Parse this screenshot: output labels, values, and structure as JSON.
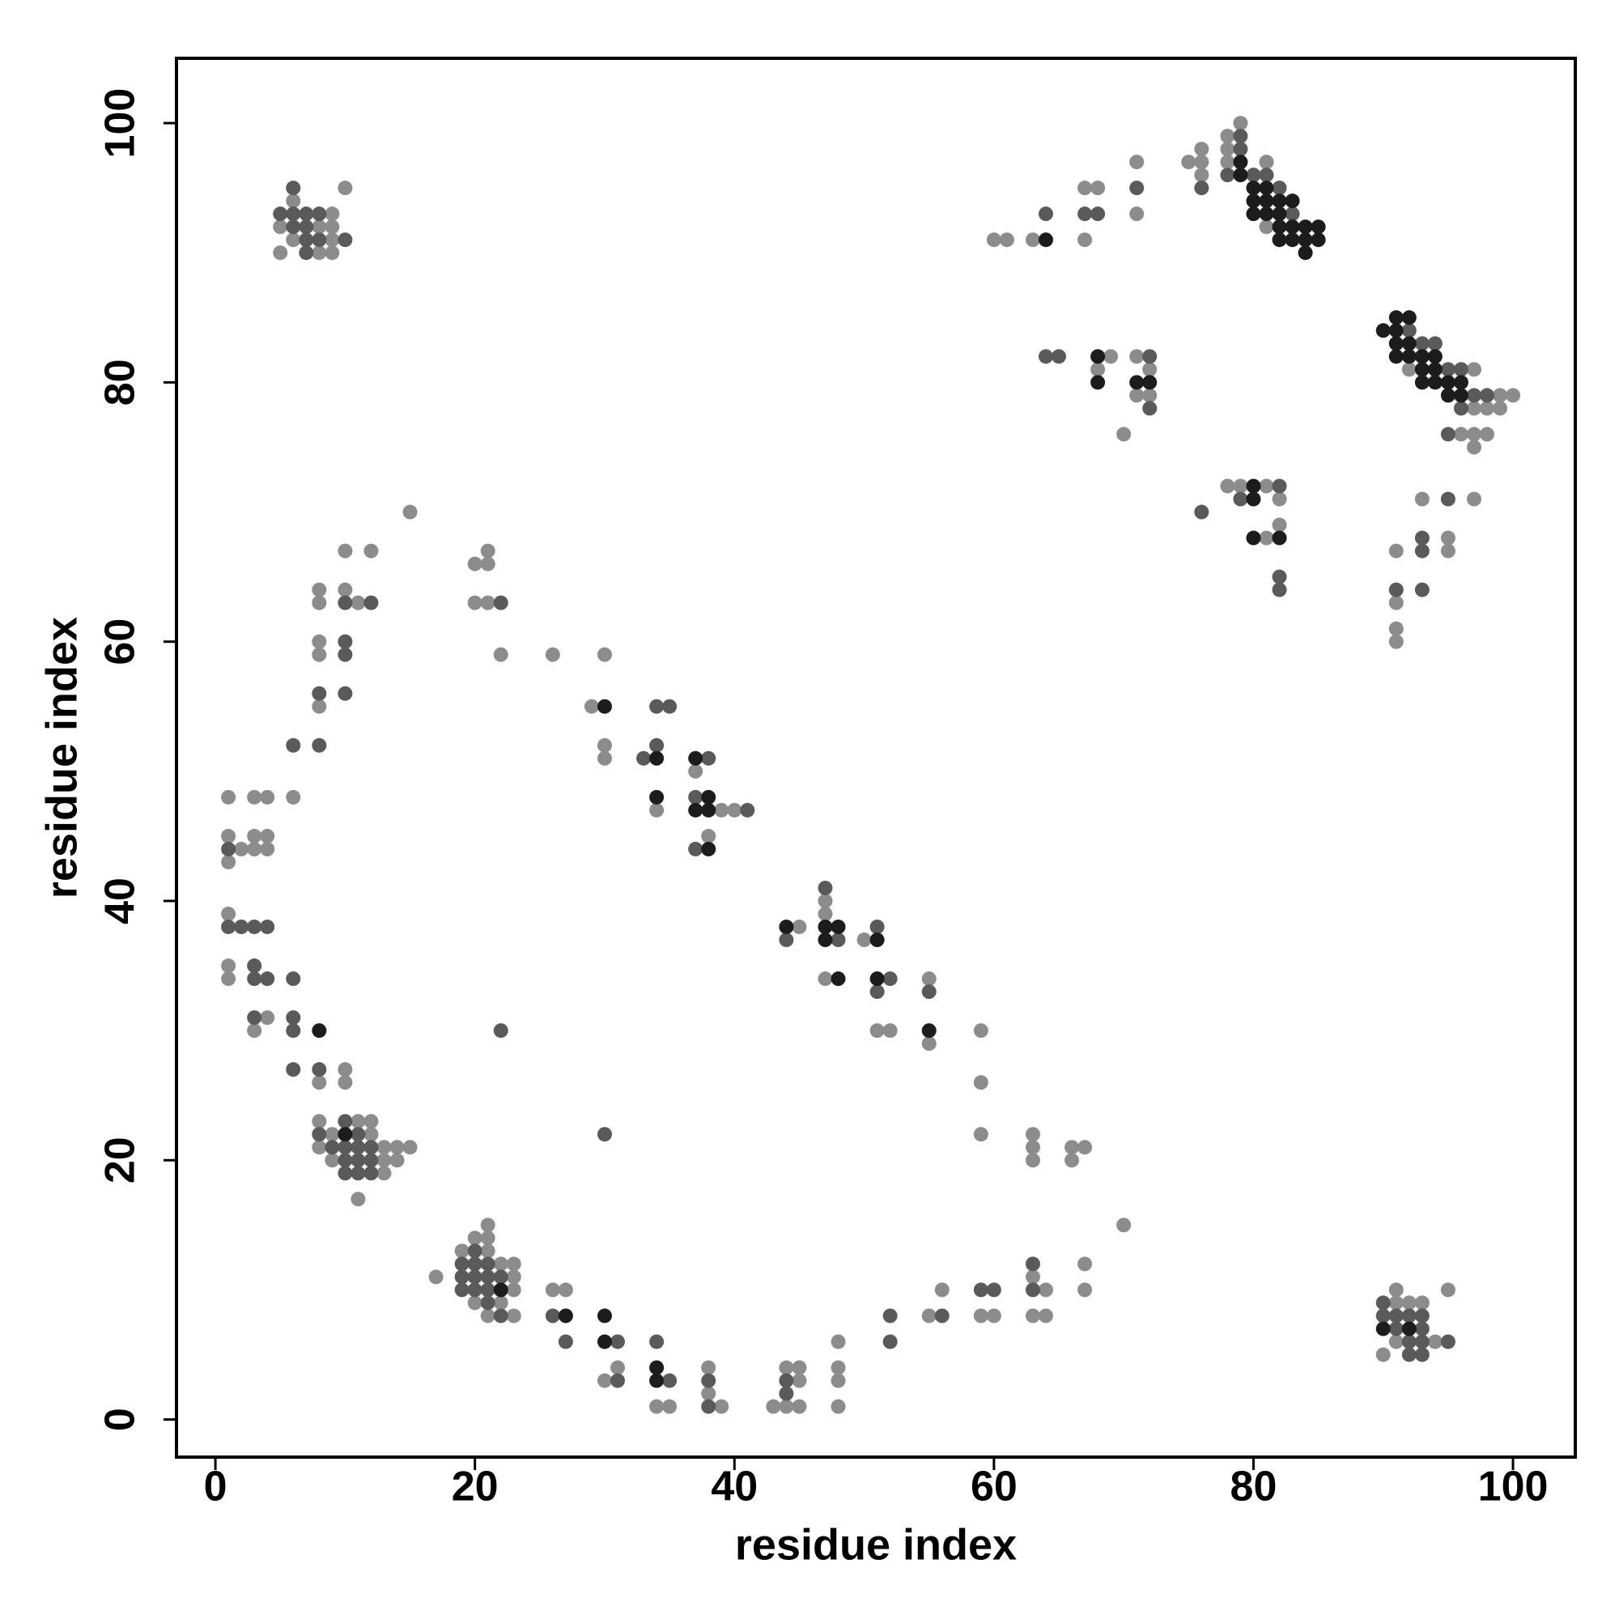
{
  "chart_data": {
    "type": "scatter",
    "xlabel": "residue index",
    "ylabel": "residue index",
    "xlim": [
      -3,
      104.8
    ],
    "ylim": [
      -2.9,
      105
    ],
    "xticks": [
      0,
      20,
      40,
      60,
      80,
      100
    ],
    "yticks": [
      0,
      20,
      40,
      60,
      80,
      100
    ],
    "series": [
      {
        "color": "#8c8c8c",
        "x": [
          10,
          6,
          9,
          5,
          8,
          9,
          6,
          9,
          5,
          8,
          9,
          79,
          75,
          76,
          76,
          76,
          78,
          78,
          78,
          81,
          81,
          71,
          71,
          67,
          68,
          67,
          63,
          60,
          61,
          92,
          97,
          99,
          100,
          97,
          98,
          99,
          96,
          97,
          98,
          97,
          69,
          71,
          68,
          72,
          71,
          72,
          70,
          78,
          79,
          81,
          82,
          81,
          82,
          91,
          91,
          91,
          91,
          93,
          95,
          95,
          97,
          91,
          95,
          91,
          92,
          93,
          91,
          94,
          90,
          15,
          10,
          12,
          8,
          10,
          8,
          11,
          8,
          8,
          8,
          6,
          1,
          3,
          4,
          1,
          3,
          4,
          2,
          3,
          4,
          1,
          1,
          1,
          1,
          4,
          3,
          10,
          8,
          10,
          8,
          11,
          12,
          9,
          12,
          8,
          13,
          14,
          15,
          9,
          13,
          14,
          13,
          11,
          20,
          21,
          21,
          20,
          21,
          22,
          26,
          30,
          29,
          30,
          30,
          34,
          37,
          39,
          40,
          38,
          47,
          47,
          45,
          47,
          50,
          51,
          52,
          55,
          55,
          59,
          59,
          59,
          63,
          63,
          63,
          66,
          67,
          66,
          70,
          21,
          20,
          21,
          19,
          21,
          22,
          23,
          23,
          17,
          23,
          20,
          22,
          21,
          23,
          26,
          27,
          31,
          30,
          34,
          35,
          38,
          38,
          39,
          43,
          44,
          45,
          45,
          44,
          45,
          48,
          48,
          48,
          48,
          55,
          56,
          59,
          60,
          63,
          64,
          63,
          64,
          67,
          67
        ],
        "y": [
          95,
          94,
          93,
          92,
          92,
          92,
          91,
          91,
          90,
          90,
          90,
          100,
          97,
          98,
          97,
          96,
          99,
          98,
          97,
          97,
          92,
          97,
          93,
          95,
          95,
          91,
          91,
          91,
          91,
          81,
          81,
          79,
          79,
          78,
          78,
          78,
          76,
          76,
          76,
          75,
          82,
          82,
          81,
          81,
          79,
          79,
          76,
          72,
          72,
          72,
          71,
          68,
          69,
          67,
          63,
          61,
          60,
          71,
          68,
          67,
          71,
          10,
          10,
          9,
          9,
          9,
          6,
          6,
          5,
          70,
          67,
          67,
          64,
          64,
          63,
          63,
          60,
          59,
          55,
          48,
          48,
          48,
          48,
          45,
          45,
          45,
          44,
          44,
          44,
          43,
          39,
          35,
          34,
          31,
          30,
          27,
          26,
          26,
          23,
          23,
          23,
          22,
          22,
          21,
          21,
          21,
          21,
          20,
          20,
          20,
          19,
          17,
          66,
          67,
          66,
          63,
          63,
          59,
          59,
          59,
          55,
          52,
          51,
          47,
          50,
          47,
          47,
          45,
          40,
          39,
          38,
          34,
          37,
          30,
          30,
          34,
          29,
          30,
          26,
          22,
          22,
          21,
          20,
          21,
          21,
          20,
          15,
          15,
          14,
          14,
          13,
          13,
          12,
          12,
          11,
          11,
          10,
          9,
          9,
          8,
          8,
          10,
          10,
          4,
          3,
          1,
          1,
          4,
          2,
          1,
          1,
          4,
          4,
          3,
          1,
          1,
          6,
          4,
          3,
          1,
          8,
          10,
          8,
          8,
          11,
          10,
          8,
          8,
          12,
          10
        ]
      },
      {
        "color": "#5a5a5a",
        "x": [
          6,
          6,
          5,
          7,
          8,
          6,
          7,
          7,
          8,
          10,
          7,
          79,
          79,
          76,
          78,
          80,
          81,
          82,
          83,
          71,
          67,
          68,
          64,
          92,
          93,
          94,
          95,
          96,
          97,
          98,
          96,
          95,
          64,
          65,
          72,
          72,
          76,
          82,
          79,
          82,
          82,
          91,
          93,
          93,
          93,
          95,
          90,
          90,
          91,
          92,
          93,
          91,
          93,
          92,
          93,
          95,
          92,
          93,
          10,
          12,
          10,
          10,
          8,
          10,
          6,
          8,
          1,
          1,
          2,
          3,
          4,
          3,
          3,
          4,
          6,
          3,
          6,
          6,
          6,
          8,
          10,
          8,
          11,
          9,
          10,
          11,
          12,
          10,
          11,
          12,
          10,
          11,
          12,
          22,
          30,
          22,
          34,
          35,
          33,
          34,
          37,
          41,
          37,
          47,
          44,
          48,
          51,
          52,
          51,
          55,
          38,
          20,
          19,
          20,
          21,
          19,
          20,
          21,
          22,
          19,
          20,
          21,
          21,
          22,
          26,
          27,
          31,
          31,
          34,
          35,
          38,
          38,
          44,
          44,
          52,
          52,
          56,
          59,
          60,
          63,
          63
        ],
        "y": [
          95,
          93,
          93,
          93,
          93,
          92,
          92,
          91,
          91,
          91,
          90,
          99,
          98,
          95,
          96,
          96,
          96,
          95,
          93,
          95,
          93,
          93,
          93,
          84,
          83,
          83,
          81,
          81,
          79,
          79,
          78,
          76,
          82,
          82,
          82,
          78,
          70,
          72,
          71,
          65,
          64,
          64,
          68,
          67,
          64,
          71,
          9,
          8,
          8,
          8,
          8,
          7,
          7,
          6,
          6,
          6,
          5,
          5,
          63,
          63,
          60,
          59,
          56,
          56,
          52,
          52,
          44,
          38,
          38,
          38,
          38,
          35,
          34,
          34,
          34,
          31,
          31,
          30,
          27,
          27,
          23,
          22,
          22,
          21,
          21,
          21,
          21,
          20,
          20,
          20,
          19,
          19,
          19,
          30,
          22,
          63,
          55,
          55,
          51,
          52,
          48,
          47,
          44,
          41,
          37,
          37,
          38,
          34,
          33,
          33,
          51,
          13,
          12,
          12,
          12,
          11,
          11,
          11,
          11,
          10,
          10,
          10,
          9,
          8,
          8,
          6,
          6,
          3,
          6,
          3,
          3,
          1,
          3,
          2,
          8,
          6,
          8,
          10,
          10,
          12,
          10
        ]
      },
      {
        "color": "#1c1c1c",
        "x": [
          79,
          79,
          80,
          80,
          81,
          80,
          81,
          82,
          83,
          81,
          82,
          82,
          83,
          84,
          85,
          82,
          83,
          84,
          85,
          84,
          64,
          90,
          91,
          92,
          91,
          91,
          92,
          91,
          92,
          93,
          94,
          93,
          94,
          93,
          94,
          95,
          96,
          95,
          96,
          68,
          68,
          71,
          72,
          80,
          80,
          80,
          82,
          90,
          92,
          8,
          10,
          30,
          34,
          34,
          37,
          38,
          37,
          38,
          38,
          44,
          47,
          48,
          47,
          48,
          51,
          51,
          55,
          22,
          27,
          30,
          30,
          34,
          34
        ],
        "y": [
          97,
          96,
          95,
          94,
          95,
          93,
          94,
          94,
          94,
          93,
          93,
          92,
          92,
          92,
          92,
          91,
          91,
          91,
          91,
          90,
          91,
          84,
          85,
          85,
          84,
          83,
          83,
          82,
          82,
          82,
          82,
          81,
          81,
          80,
          80,
          80,
          80,
          79,
          79,
          82,
          80,
          80,
          80,
          72,
          71,
          68,
          68,
          7,
          7,
          30,
          22,
          55,
          51,
          48,
          51,
          48,
          47,
          47,
          44,
          38,
          38,
          38,
          37,
          34,
          37,
          34,
          30,
          10,
          8,
          8,
          6,
          4,
          3
        ]
      }
    ]
  }
}
